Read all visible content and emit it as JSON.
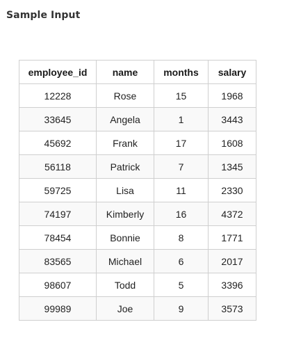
{
  "heading": "Sample Input",
  "table": {
    "columns": [
      "employee_id",
      "name",
      "months",
      "salary"
    ],
    "rows": [
      [
        "12228",
        "Rose",
        "15",
        "1968"
      ],
      [
        "33645",
        "Angela",
        "1",
        "3443"
      ],
      [
        "45692",
        "Frank",
        "17",
        "1608"
      ],
      [
        "56118",
        "Patrick",
        "7",
        "1345"
      ],
      [
        "59725",
        "Lisa",
        "11",
        "2330"
      ],
      [
        "74197",
        "Kimberly",
        "16",
        "4372"
      ],
      [
        "78454",
        "Bonnie",
        "8",
        "1771"
      ],
      [
        "83565",
        "Michael",
        "6",
        "2017"
      ],
      [
        "98607",
        "Todd",
        "5",
        "3396"
      ],
      [
        "99989",
        "Joe",
        "9",
        "3573"
      ]
    ]
  }
}
